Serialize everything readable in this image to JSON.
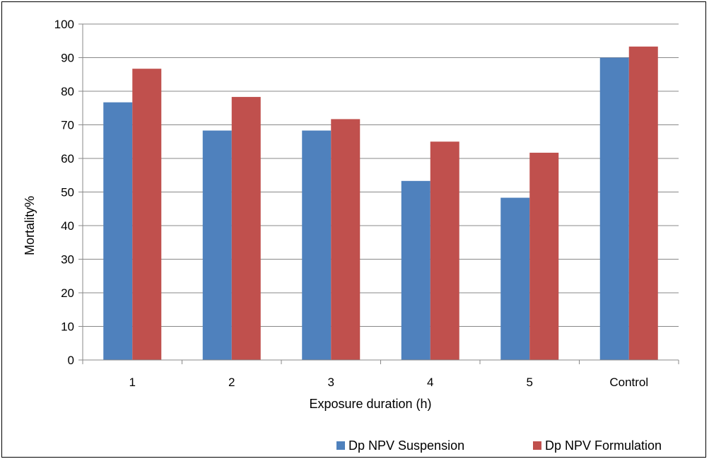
{
  "chart_data": {
    "type": "bar",
    "title": "",
    "xlabel": "Exposure duration (h)",
    "ylabel": "Mortality%",
    "categories": [
      "1",
      "2",
      "3",
      "4",
      "5",
      "Control"
    ],
    "series": [
      {
        "name": "Dp NPV Suspension",
        "color": "#4f81bd",
        "values": [
          76.7,
          68.3,
          68.3,
          53.3,
          48.3,
          90
        ]
      },
      {
        "name": "Dp NPV Formulation",
        "color": "#c0504d",
        "values": [
          86.7,
          78.3,
          71.7,
          65,
          61.7,
          93.3
        ]
      }
    ],
    "ylim": [
      0,
      100
    ],
    "yticks": [
      0,
      10,
      20,
      30,
      40,
      50,
      60,
      70,
      80,
      90,
      100
    ],
    "grid": true,
    "legend_position": "bottom-right"
  }
}
